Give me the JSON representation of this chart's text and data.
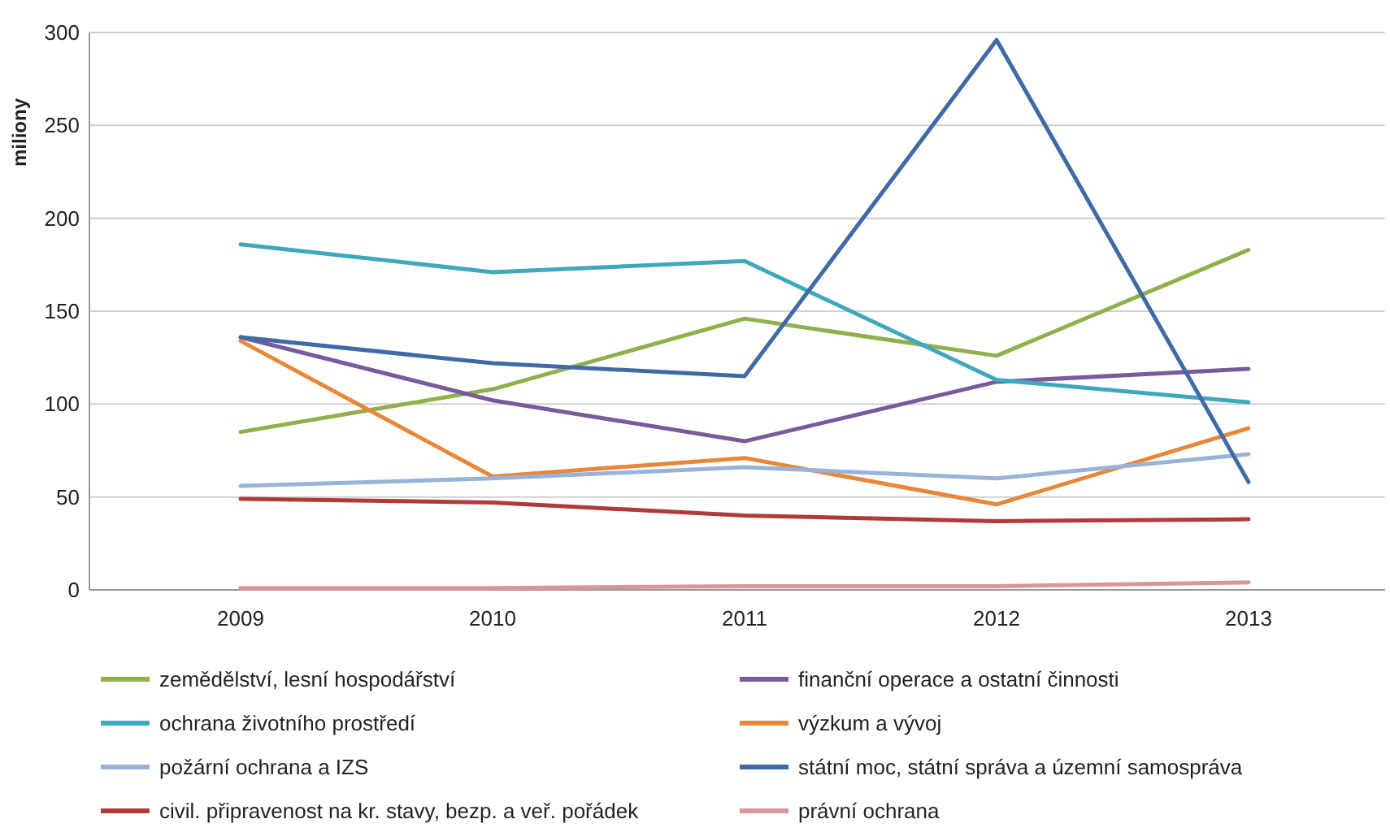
{
  "chart_data": {
    "type": "line",
    "ylabel": "miliony",
    "categories": [
      "2009",
      "2010",
      "2011",
      "2012",
      "2013"
    ],
    "ylim": [
      0,
      300
    ],
    "yticks": [
      0,
      50,
      100,
      150,
      200,
      250,
      300
    ],
    "grid": "y",
    "legend": "bottom",
    "marker": "none",
    "line_style": "solid",
    "series": [
      {
        "name": "zemědělství, lesní hospodářství",
        "color": "#8fb04a",
        "values": [
          85,
          108,
          146,
          126,
          183
        ]
      },
      {
        "name": "finanční operace a ostatní činnosti",
        "color": "#7a5a9a",
        "values": [
          136,
          102,
          80,
          112,
          119
        ]
      },
      {
        "name": "ochrana životního prostředí",
        "color": "#3ea8bd",
        "values": [
          186,
          171,
          177,
          113,
          101
        ]
      },
      {
        "name": "výzkum a vývoj",
        "color": "#e8873a",
        "values": [
          134,
          61,
          71,
          46,
          87
        ]
      },
      {
        "name": "požární ochrana a IZS",
        "color": "#98b3d9",
        "values": [
          56,
          60,
          66,
          60,
          73
        ]
      },
      {
        "name": "státní moc, státní správa a územní samospráva",
        "color": "#3e6aa6",
        "values": [
          136,
          122,
          115,
          296,
          58
        ]
      },
      {
        "name": "civil. připravenost na kr. stavy, bezp. a veř. pořádek",
        "color": "#b03a38",
        "values": [
          49,
          47,
          40,
          37,
          38
        ]
      },
      {
        "name": "právní ochrana",
        "color": "#d99694",
        "values": [
          1,
          1,
          2,
          2,
          4
        ]
      }
    ]
  }
}
